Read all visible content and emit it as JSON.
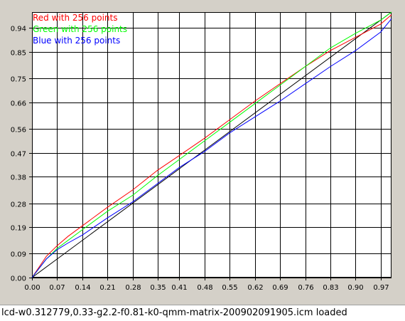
{
  "chart_data": {
    "type": "line",
    "title": "",
    "xlabel": "",
    "ylabel": "",
    "xlim": [
      0,
      1
    ],
    "ylim": [
      0,
      1
    ],
    "grid": true,
    "legend_position": "top-left",
    "x_tick_labels": [
      "0.00",
      "0.07",
      "0.14",
      "0.21",
      "0.28",
      "0.35",
      "0.41",
      "0.48",
      "0.55",
      "0.62",
      "0.69",
      "0.76",
      "0.83",
      "0.90",
      "0.97"
    ],
    "y_tick_labels": [
      "0.00",
      "0.09",
      "0.19",
      "0.28",
      "0.38",
      "0.47",
      "0.56",
      "0.66",
      "0.75",
      "0.85",
      "0.94"
    ],
    "reference_line": {
      "from": [
        0,
        0
      ],
      "to": [
        1,
        1
      ],
      "color": "#000000"
    },
    "series": [
      {
        "name": "Red with 256 points",
        "color": "#ff0000",
        "x": [
          0,
          0.02,
          0.04,
          0.07,
          0.1,
          0.14,
          0.21,
          0.28,
          0.35,
          0.41,
          0.48,
          0.55,
          0.62,
          0.69,
          0.76,
          0.83,
          0.9,
          0.97,
          1.0
        ],
        "y": [
          0,
          0.04,
          0.08,
          0.12,
          0.155,
          0.195,
          0.265,
          0.33,
          0.405,
          0.46,
          0.525,
          0.595,
          0.665,
          0.73,
          0.795,
          0.855,
          0.905,
          0.955,
          0.99
        ]
      },
      {
        "name": "Green with 256 points",
        "color": "#00ff00",
        "x": [
          0,
          0.02,
          0.04,
          0.07,
          0.1,
          0.14,
          0.21,
          0.28,
          0.35,
          0.41,
          0.48,
          0.55,
          0.62,
          0.69,
          0.76,
          0.83,
          0.9,
          0.97,
          1.0
        ],
        "y": [
          0,
          0.035,
          0.07,
          0.11,
          0.14,
          0.18,
          0.25,
          0.31,
          0.385,
          0.445,
          0.515,
          0.585,
          0.655,
          0.725,
          0.795,
          0.865,
          0.92,
          0.97,
          1.0
        ]
      },
      {
        "name": "Blue with 256 points",
        "color": "#0000ff",
        "x": [
          0,
          0.02,
          0.04,
          0.07,
          0.1,
          0.14,
          0.21,
          0.28,
          0.35,
          0.41,
          0.48,
          0.55,
          0.62,
          0.69,
          0.76,
          0.83,
          0.9,
          0.97,
          1.0
        ],
        "y": [
          0,
          0.035,
          0.07,
          0.105,
          0.13,
          0.16,
          0.225,
          0.285,
          0.355,
          0.415,
          0.475,
          0.545,
          0.605,
          0.665,
          0.73,
          0.795,
          0.855,
          0.925,
          0.975
        ]
      }
    ]
  },
  "status": {
    "text": "lcd-w0.312779,0.33-g2.2-f0.81-k0-qmm-matrix-200902091905.icm loaded"
  }
}
